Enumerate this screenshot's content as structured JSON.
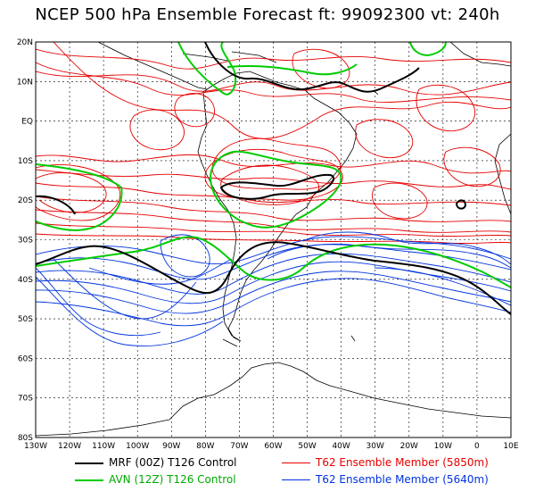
{
  "title": "NCEP 500 hPa Ensemble Forecast  ft: 99092300 vt: 240h",
  "lat_labels": [
    "20N",
    "10N",
    "EQ",
    "10S",
    "20S",
    "30S",
    "40S",
    "50S",
    "60S",
    "70S",
    "80S"
  ],
  "lon_labels": [
    "130W",
    "120W",
    "110W",
    "100W",
    "90W",
    "80W",
    "70W",
    "60W",
    "50W",
    "40W",
    "30W",
    "20W",
    "10W",
    "0",
    "10E"
  ],
  "colors": {
    "mrf": "#000000",
    "avn": "#00cc00",
    "ens_5850": "#e60000",
    "ens_5640": "#0033dd",
    "coast": "#000000",
    "grid": "#000000"
  },
  "legend": [
    {
      "label": "MRF (00Z) T126 Control",
      "color": "#000000"
    },
    {
      "label": "T62 Ensemble Member (5850m)",
      "color": "#e60000"
    },
    {
      "label": "AVN (12Z) T126 Control",
      "color": "#00cc00"
    },
    {
      "label": "T62 Ensemble Member (5640m)",
      "color": "#0033dd"
    }
  ]
}
